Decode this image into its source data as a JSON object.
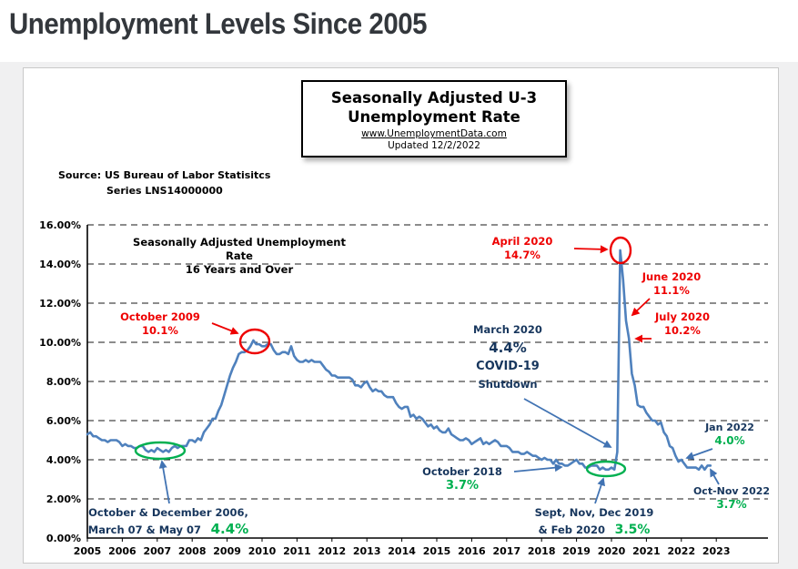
{
  "page": {
    "title": "Unemployment Levels Since 2005"
  },
  "chart": {
    "header_box": {
      "line1": "Seasonally Adjusted U-3",
      "line2": "Unemployment Rate",
      "link": "www.UnemploymentData.com",
      "updated": "Updated  12/2/2022"
    },
    "source": {
      "line1": "Source:  US  Bureau of Labor Statisitcs",
      "line2": "Series LNS14000000"
    }
  },
  "chart_data": {
    "type": "line",
    "title": "Seasonally Adjusted U-3 Unemployment Rate",
    "plot_label": {
      "line1": "Seasonally Adjusted Unemployment Rate",
      "line2": "16 Years and Over"
    },
    "xlabel": "",
    "ylabel": "",
    "x_tick_labels": [
      "2005",
      "2006",
      "2007",
      "2008",
      "2009",
      "2010",
      "2011",
      "2012",
      "2013",
      "2014",
      "2015",
      "2016",
      "2017",
      "2018",
      "2019",
      "2020",
      "2021",
      "2022",
      "2023"
    ],
    "y_tick_labels": [
      "16.00%",
      "14.00%",
      "12.00%",
      "10.00%",
      "8.00%",
      "6.00%",
      "4.00%",
      "2.00%",
      "0.00%"
    ],
    "ylim": [
      0,
      16
    ],
    "grid": "dashed-horizontal",
    "legend": "none",
    "colors": {
      "line": "#4f81bd",
      "red": "#ee0000",
      "navy": "#17365d",
      "green": "#00b050"
    },
    "series": [
      {
        "name": "U-3 Unemployment Rate (%, monthly, seasonally adjusted)",
        "monthly_by_year": [
          {
            "year": 2005,
            "values": [
              5.3,
              5.4,
              5.2,
              5.2,
              5.1,
              5.0,
              5.0,
              4.9,
              5.0,
              5.0,
              5.0,
              4.9
            ]
          },
          {
            "year": 2006,
            "values": [
              4.7,
              4.8,
              4.7,
              4.7,
              4.6,
              4.6,
              4.7,
              4.7,
              4.5,
              4.4,
              4.5,
              4.4
            ]
          },
          {
            "year": 2007,
            "values": [
              4.6,
              4.5,
              4.4,
              4.5,
              4.4,
              4.6,
              4.7,
              4.6,
              4.7,
              4.7,
              4.7,
              5.0
            ]
          },
          {
            "year": 2008,
            "values": [
              5.0,
              4.9,
              5.1,
              5.0,
              5.4,
              5.6,
              5.8,
              6.1,
              6.1,
              6.5,
              6.8,
              7.3
            ]
          },
          {
            "year": 2009,
            "values": [
              7.8,
              8.3,
              8.7,
              9.0,
              9.4,
              9.5,
              9.5,
              9.6,
              9.8,
              10.1,
              9.9,
              9.9
            ]
          },
          {
            "year": 2010,
            "values": [
              9.8,
              9.8,
              9.9,
              9.9,
              9.6,
              9.4,
              9.4,
              9.5,
              9.5,
              9.4,
              9.8,
              9.3
            ]
          },
          {
            "year": 2011,
            "values": [
              9.1,
              9.0,
              9.0,
              9.1,
              9.0,
              9.1,
              9.0,
              9.0,
              9.0,
              8.8,
              8.6,
              8.5
            ]
          },
          {
            "year": 2012,
            "values": [
              8.3,
              8.3,
              8.2,
              8.2,
              8.2,
              8.2,
              8.2,
              8.1,
              7.8,
              7.8,
              7.7,
              7.9
            ]
          },
          {
            "year": 2013,
            "values": [
              8.0,
              7.7,
              7.5,
              7.6,
              7.5,
              7.5,
              7.3,
              7.2,
              7.2,
              7.2,
              6.9,
              6.7
            ]
          },
          {
            "year": 2014,
            "values": [
              6.6,
              6.7,
              6.7,
              6.2,
              6.3,
              6.1,
              6.2,
              6.1,
              5.9,
              5.7,
              5.8,
              5.6
            ]
          },
          {
            "year": 2015,
            "values": [
              5.7,
              5.5,
              5.4,
              5.4,
              5.6,
              5.3,
              5.2,
              5.1,
              5.0,
              5.0,
              5.1,
              5.0
            ]
          },
          {
            "year": 2016,
            "values": [
              4.8,
              4.9,
              5.0,
              5.1,
              4.8,
              4.9,
              4.8,
              4.9,
              5.0,
              4.9,
              4.7,
              4.7
            ]
          },
          {
            "year": 2017,
            "values": [
              4.7,
              4.6,
              4.4,
              4.4,
              4.4,
              4.3,
              4.3,
              4.4,
              4.3,
              4.2,
              4.2,
              4.1
            ]
          },
          {
            "year": 2018,
            "values": [
              4.0,
              4.1,
              4.0,
              4.0,
              3.8,
              4.0,
              3.8,
              3.8,
              3.7,
              3.7,
              3.8,
              3.9
            ]
          },
          {
            "year": 2019,
            "values": [
              4.0,
              3.8,
              3.8,
              3.6,
              3.6,
              3.7,
              3.7,
              3.7,
              3.5,
              3.6,
              3.5,
              3.5
            ]
          },
          {
            "year": 2020,
            "values": [
              3.6,
              3.5,
              4.4,
              14.7,
              13.2,
              11.1,
              10.2,
              8.4,
              7.8,
              6.8,
              6.7,
              6.7
            ]
          },
          {
            "year": 2021,
            "values": [
              6.4,
              6.2,
              6.0,
              6.0,
              5.8,
              5.9,
              5.4,
              5.2,
              4.7,
              4.6,
              4.2,
              3.9
            ]
          },
          {
            "year": 2022,
            "values": [
              4.0,
              3.8,
              3.6,
              3.6,
              3.6,
              3.6,
              3.5,
              3.7,
              3.5,
              3.7,
              3.7
            ]
          }
        ]
      }
    ],
    "annotations": {
      "oct_2009": {
        "label": "October 2009",
        "value": "10.1%"
      },
      "apr_2020": {
        "label": "April 2020",
        "value": "14.7%"
      },
      "jun_2020": {
        "label": "June 2020",
        "value": "11.1%"
      },
      "jul_2020": {
        "label": "July 2020",
        "value": "10.2%"
      },
      "mar_2020": {
        "label": "March 2020",
        "value": "4.4%",
        "line3": "COVID-19",
        "line4": "Shutdown"
      },
      "oct_2018": {
        "label": "October 2018",
        "value": "3.7%"
      },
      "late_2019": {
        "label": "Sept, Nov, Dec 2019",
        "label2": "& Feb 2020",
        "value": "3.5%"
      },
      "jan_2022": {
        "label": "Jan 2022",
        "value": "4.0%"
      },
      "oct_nov_2022": {
        "label": "Oct-Nov 2022",
        "value": "3.7%"
      },
      "lows_2006_07": {
        "label": "October & December 2006,",
        "label2": "March 07 & May 07",
        "value": "4.4%"
      }
    }
  }
}
